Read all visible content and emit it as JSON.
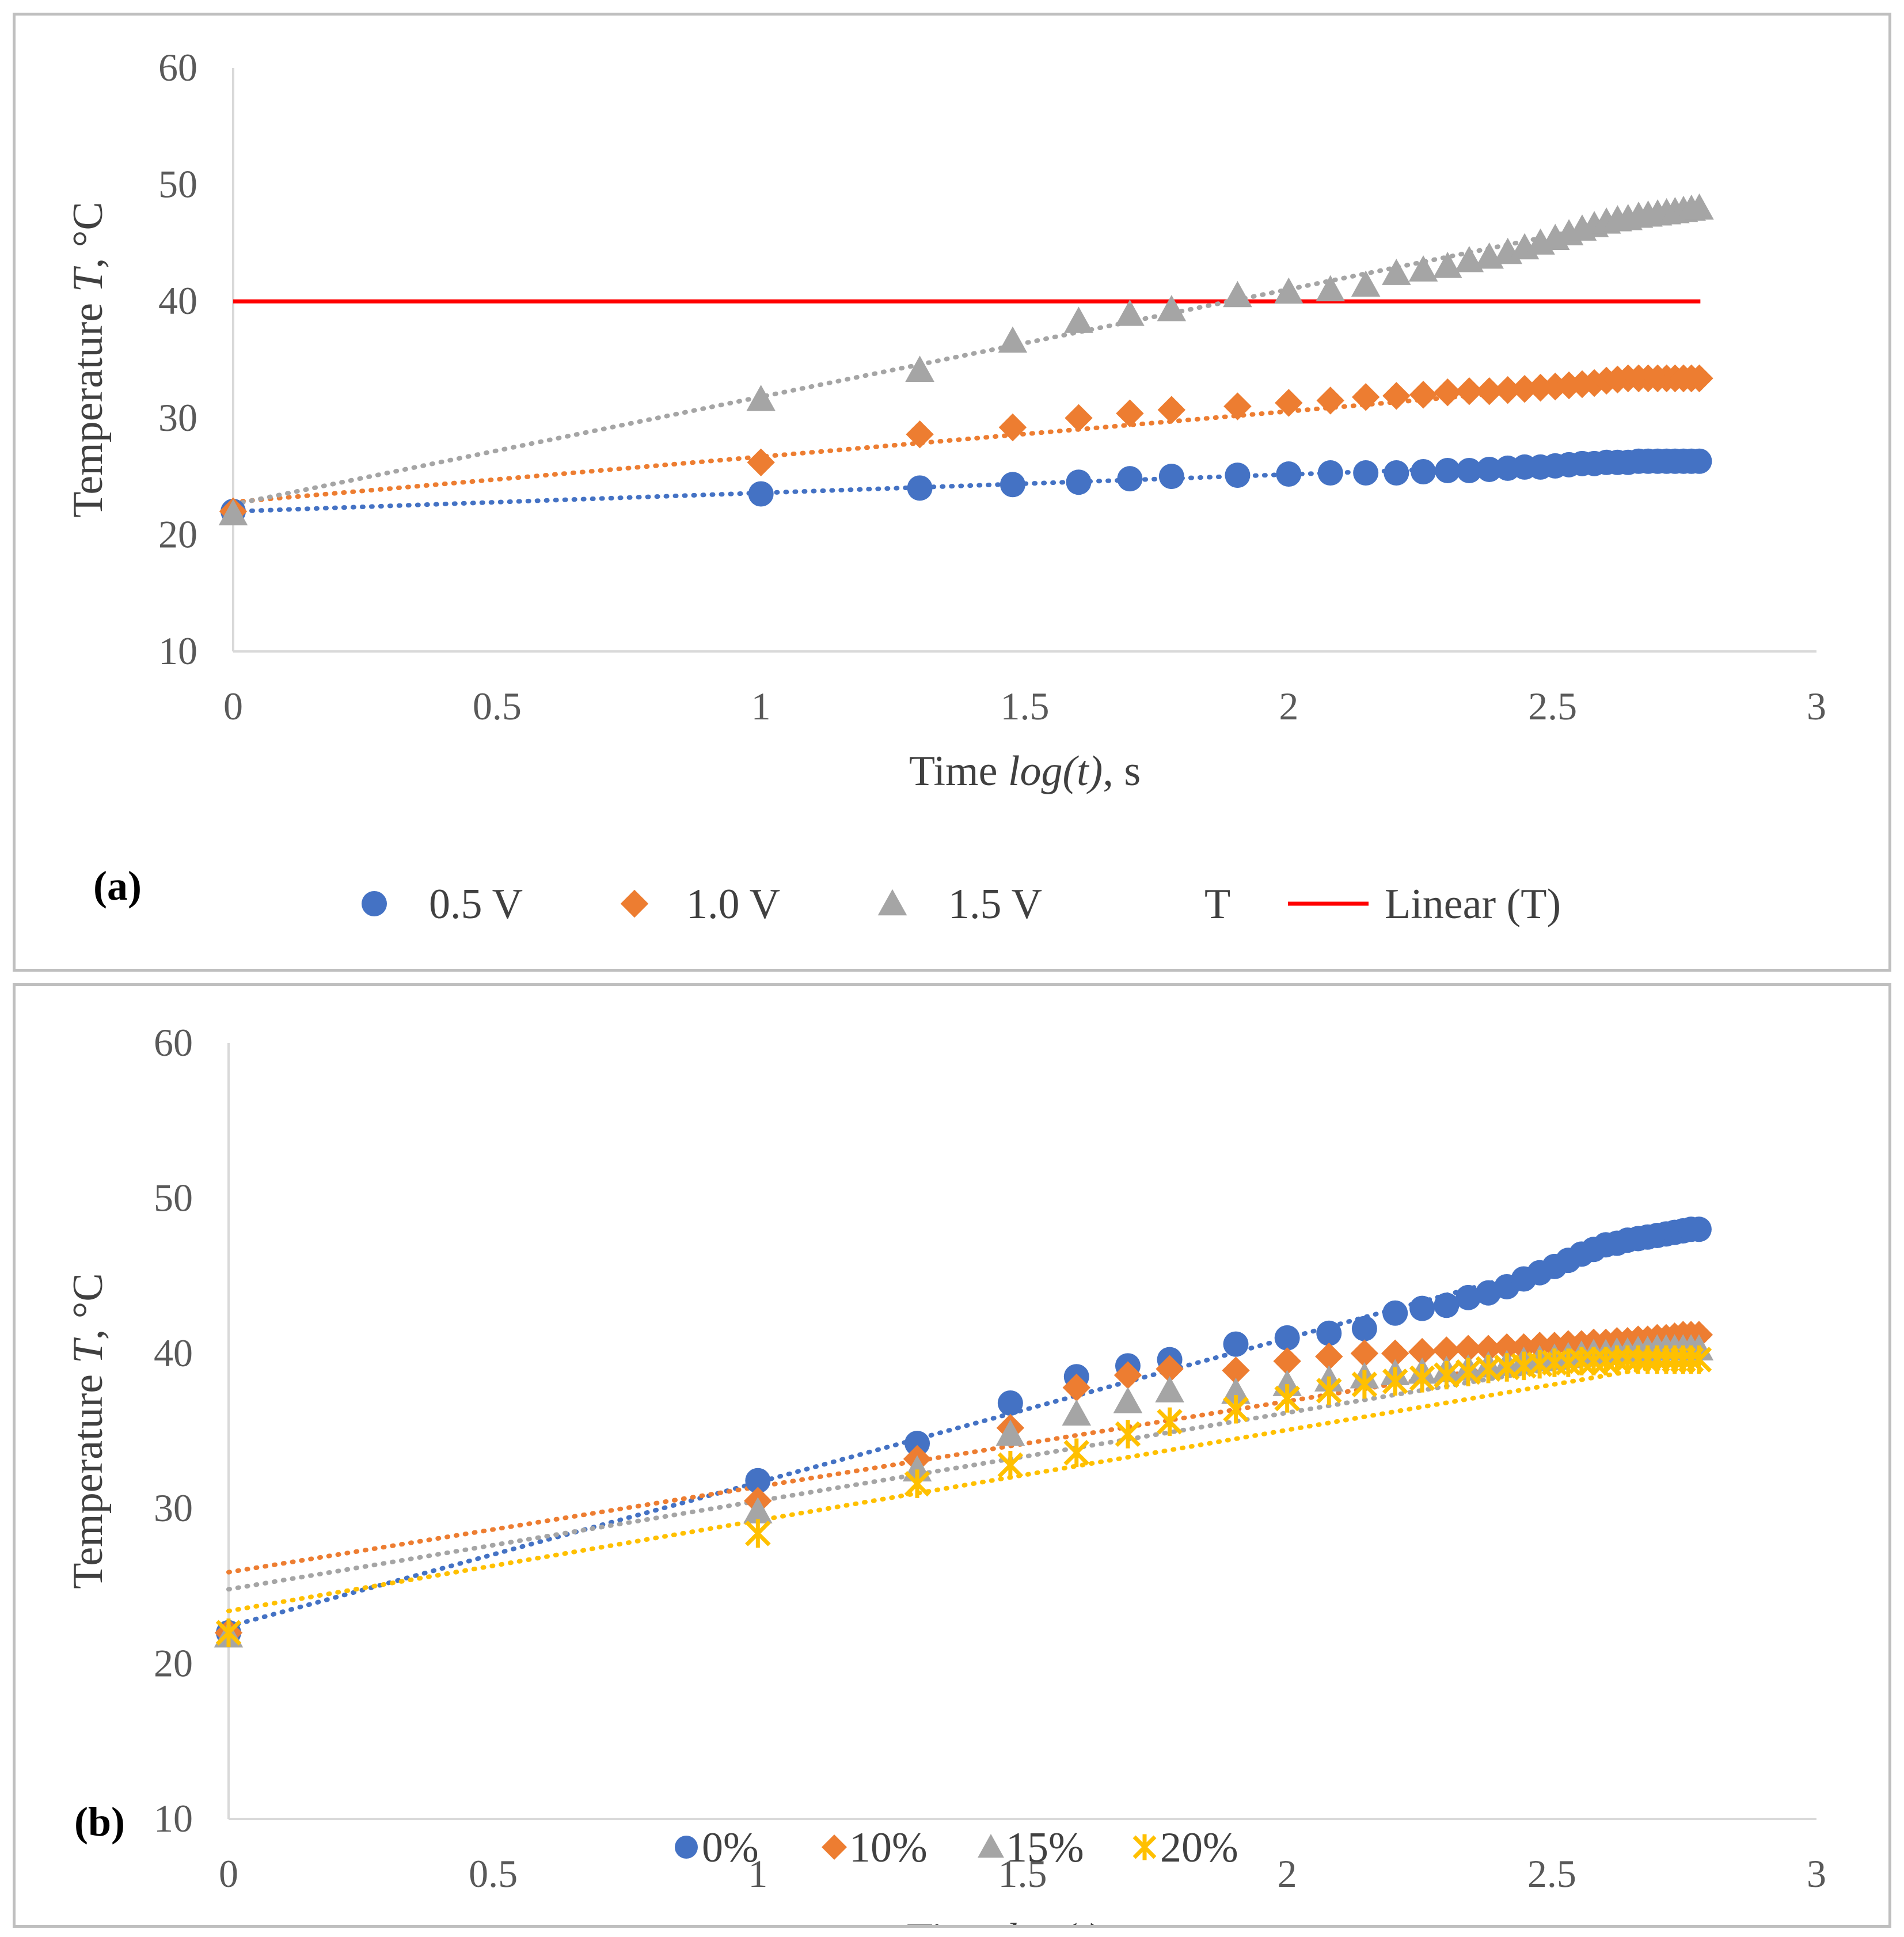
{
  "chart_data": [
    {
      "type": "scatter",
      "panel_label": "(a)",
      "xlabel_prefix": "Time ",
      "xlabel_italic": "log(t)",
      "xlabel_suffix": ", s",
      "ylabel_prefix": "Temperature ",
      "ylabel_italic": "T",
      "ylabel_suffix": ", °C",
      "xlim": [
        0,
        3
      ],
      "ylim": [
        10,
        60
      ],
      "xticks": [
        0,
        0.5,
        1,
        1.5,
        2,
        2.5,
        3
      ],
      "xtick_labels": [
        "0",
        "0.5",
        "1",
        "1.5",
        "2",
        "2.5",
        "3"
      ],
      "yticks": [
        10,
        20,
        30,
        40,
        50,
        60
      ],
      "ytick_labels": [
        "10",
        "20",
        "30",
        "40",
        "50",
        "60"
      ],
      "x": [
        0,
        1,
        1.301,
        1.477,
        1.602,
        1.699,
        1.778,
        1.903,
        2.0,
        2.079,
        2.146,
        2.204,
        2.255,
        2.301,
        2.342,
        2.38,
        2.415,
        2.447,
        2.477,
        2.505,
        2.531,
        2.556,
        2.579,
        2.602,
        2.623,
        2.643,
        2.663,
        2.681,
        2.699,
        2.716,
        2.732,
        2.748,
        2.763,
        2.778
      ],
      "series": [
        {
          "name": "0.5 V",
          "color": "#4472c4",
          "marker": "circle",
          "values": [
            22.0,
            23.5,
            24.0,
            24.3,
            24.5,
            24.8,
            25.0,
            25.1,
            25.2,
            25.3,
            25.3,
            25.3,
            25.4,
            25.5,
            25.5,
            25.6,
            25.7,
            25.8,
            25.8,
            25.9,
            26.0,
            26.1,
            26.1,
            26.2,
            26.2,
            26.2,
            26.3,
            26.3,
            26.3,
            26.3,
            26.3,
            26.3,
            26.3,
            26.3
          ],
          "trend": [
            22.0,
            26.4
          ]
        },
        {
          "name": "1.0 V",
          "color": "#ed7d31",
          "marker": "diamond",
          "values": [
            22.0,
            26.2,
            28.6,
            29.2,
            30.0,
            30.4,
            30.7,
            31.0,
            31.3,
            31.5,
            31.8,
            31.9,
            32.0,
            32.2,
            32.3,
            32.3,
            32.4,
            32.5,
            32.6,
            32.7,
            32.8,
            32.9,
            33.0,
            33.2,
            33.3,
            33.4,
            33.4,
            33.4,
            33.4,
            33.4,
            33.4,
            33.4,
            33.4,
            33.4
          ],
          "trend": [
            22.8,
            33.6
          ]
        },
        {
          "name": "1.5 V",
          "color": "#a5a5a5",
          "marker": "triangle",
          "values": [
            21.8,
            31.6,
            34.1,
            36.6,
            38.3,
            38.9,
            39.3,
            40.5,
            40.8,
            41.0,
            41.4,
            42.4,
            42.7,
            43.0,
            43.5,
            43.8,
            44.2,
            44.6,
            45.0,
            45.4,
            45.8,
            46.2,
            46.5,
            46.8,
            47.0,
            47.1,
            47.3,
            47.4,
            47.5,
            47.6,
            47.7,
            47.8,
            47.9,
            48.0
          ],
          "trend": [
            22.6,
            48.2
          ]
        }
      ],
      "reference_line": {
        "name": "Linear (T)",
        "value": 40,
        "x_range": [
          0,
          2.78
        ],
        "color": "#ff0000"
      },
      "legend": [
        {
          "label": "0.5 V",
          "marker": "circle",
          "color": "#4472c4"
        },
        {
          "label": "1.0 V",
          "marker": "diamond",
          "color": "#ed7d31"
        },
        {
          "label": "1.5 V",
          "marker": "triangle",
          "color": "#a5a5a5"
        },
        {
          "label": "T",
          "marker": "none",
          "color": "#404040"
        },
        {
          "label": "Linear (T)",
          "marker": "line",
          "color": "#ff0000"
        }
      ]
    },
    {
      "type": "scatter",
      "panel_label": "(b)",
      "xlabel_prefix": "Time ",
      "xlabel_italic": "log(t)",
      "xlabel_suffix": ", s",
      "ylabel_prefix": "Temperature ",
      "ylabel_italic": "T",
      "ylabel_suffix": ", °C",
      "xlim": [
        0,
        3
      ],
      "ylim": [
        10,
        60
      ],
      "xticks": [
        0,
        0.5,
        1,
        1.5,
        2,
        2.5,
        3
      ],
      "xtick_labels": [
        "0",
        "0.5",
        "1",
        "1.5",
        "2",
        "2.5",
        "3"
      ],
      "yticks": [
        10,
        20,
        30,
        40,
        50,
        60
      ],
      "ytick_labels": [
        "10",
        "20",
        "30",
        "40",
        "50",
        "60"
      ],
      "x": [
        0,
        1,
        1.301,
        1.477,
        1.602,
        1.699,
        1.778,
        1.903,
        2.0,
        2.079,
        2.146,
        2.204,
        2.255,
        2.301,
        2.342,
        2.38,
        2.415,
        2.447,
        2.477,
        2.505,
        2.531,
        2.556,
        2.579,
        2.602,
        2.623,
        2.643,
        2.663,
        2.681,
        2.699,
        2.716,
        2.732,
        2.748,
        2.763,
        2.778
      ],
      "series": [
        {
          "name": "0%",
          "color": "#4472c4",
          "marker": "circle",
          "values": [
            22.0,
            31.8,
            34.2,
            36.8,
            38.5,
            39.2,
            39.6,
            40.6,
            41.0,
            41.3,
            41.6,
            42.6,
            42.9,
            43.1,
            43.6,
            43.9,
            44.3,
            44.8,
            45.2,
            45.6,
            46.0,
            46.4,
            46.7,
            47.0,
            47.1,
            47.3,
            47.4,
            47.5,
            47.6,
            47.7,
            47.8,
            47.9,
            48.0,
            48.0
          ],
          "trend": [
            22.4,
            48.2
          ]
        },
        {
          "name": "10%",
          "color": "#ed7d31",
          "marker": "diamond",
          "values": [
            22.0,
            30.5,
            33.2,
            35.2,
            37.8,
            38.6,
            39.0,
            38.9,
            39.5,
            39.8,
            40.0,
            40.0,
            40.1,
            40.2,
            40.3,
            40.3,
            40.4,
            40.4,
            40.5,
            40.5,
            40.6,
            40.6,
            40.7,
            40.7,
            40.8,
            40.8,
            40.9,
            40.9,
            41.0,
            41.0,
            41.1,
            41.2,
            41.2,
            41.2
          ],
          "trend": [
            25.9,
            41.2
          ]
        },
        {
          "name": "15%",
          "color": "#a5a5a5",
          "marker": "triangle",
          "values": [
            21.8,
            29.8,
            32.5,
            34.8,
            36.1,
            36.9,
            37.6,
            37.5,
            38.0,
            38.3,
            38.5,
            38.7,
            38.8,
            38.9,
            39.0,
            39.2,
            39.3,
            39.5,
            39.6,
            39.7,
            39.8,
            39.9,
            40.0,
            40.0,
            40.1,
            40.1,
            40.2,
            40.2,
            40.3,
            40.3,
            40.3,
            40.3,
            40.3,
            40.3
          ],
          "trend": [
            24.8,
            40.6
          ]
        },
        {
          "name": "20%",
          "color": "#ffc000",
          "marker": "star",
          "values": [
            22.0,
            28.4,
            31.6,
            32.8,
            33.6,
            34.8,
            35.6,
            36.4,
            37.1,
            37.6,
            38.0,
            38.2,
            38.4,
            38.6,
            38.8,
            39.0,
            39.1,
            39.2,
            39.3,
            39.4,
            39.4,
            39.5,
            39.5,
            39.5,
            39.6,
            39.6,
            39.6,
            39.6,
            39.6,
            39.6,
            39.6,
            39.6,
            39.6,
            39.6
          ],
          "trend": [
            23.4,
            39.6
          ]
        }
      ],
      "legend": [
        {
          "label": "0%",
          "marker": "circle",
          "color": "#4472c4"
        },
        {
          "label": "10%",
          "marker": "diamond",
          "color": "#ed7d31"
        },
        {
          "label": "15%",
          "marker": "triangle",
          "color": "#a5a5a5"
        },
        {
          "label": "20%",
          "marker": "star",
          "color": "#ffc000"
        }
      ]
    }
  ]
}
